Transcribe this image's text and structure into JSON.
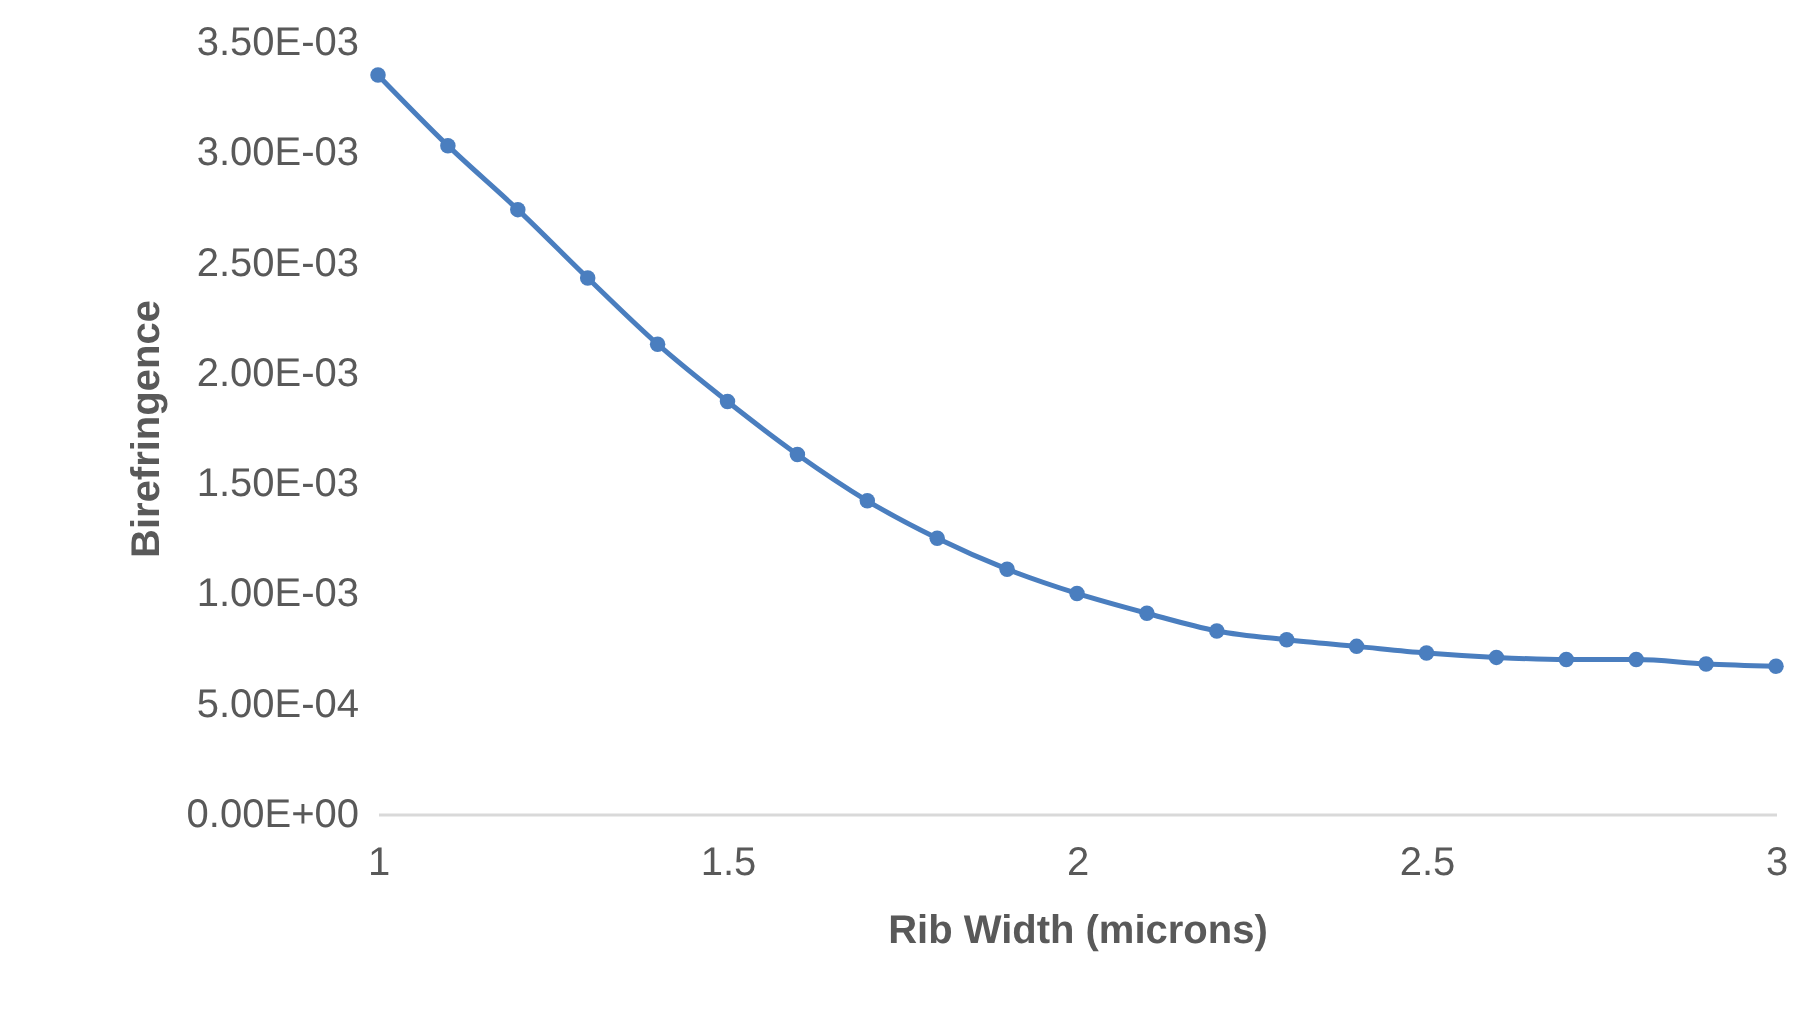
{
  "chart_data": {
    "type": "line",
    "xlabel": "Rib Width (microns)",
    "ylabel": "Birefringence",
    "x": [
      1.0,
      1.1,
      1.2,
      1.3,
      1.4,
      1.5,
      1.6,
      1.7,
      1.8,
      1.9,
      2.0,
      2.1,
      2.2,
      2.3,
      2.4,
      2.5,
      2.6,
      2.7,
      2.8,
      2.9,
      3.0
    ],
    "series": [
      {
        "color": "#4a7ebf",
        "values": [
          0.00335,
          0.00303,
          0.00274,
          0.00243,
          0.00213,
          0.00187,
          0.00163,
          0.00142,
          0.00125,
          0.00111,
          0.001,
          0.00091,
          0.00083,
          0.00079,
          0.00076,
          0.00073,
          0.00071,
          0.0007,
          0.0007,
          0.00068,
          0.00067
        ]
      }
    ],
    "xlim": [
      1,
      3
    ],
    "xticks": [
      1,
      1.5,
      2,
      2.5,
      3
    ],
    "ylim": [
      0,
      0.0035
    ],
    "yticks": [
      {
        "value": 0,
        "label": "0.00E+00"
      },
      {
        "value": 0.0005,
        "label": "5.00E-04"
      },
      {
        "value": 0.001,
        "label": "1.00E-03"
      },
      {
        "value": 0.0015,
        "label": "1.50E-03"
      },
      {
        "value": 0.002,
        "label": "2.00E-03"
      },
      {
        "value": 0.0025,
        "label": "2.50E-03"
      },
      {
        "value": 0.003,
        "label": "3.00E-03"
      },
      {
        "value": 0.0035,
        "label": "3.50E-03"
      }
    ],
    "grid": false,
    "marker": "circle",
    "line_style": "solid"
  }
}
